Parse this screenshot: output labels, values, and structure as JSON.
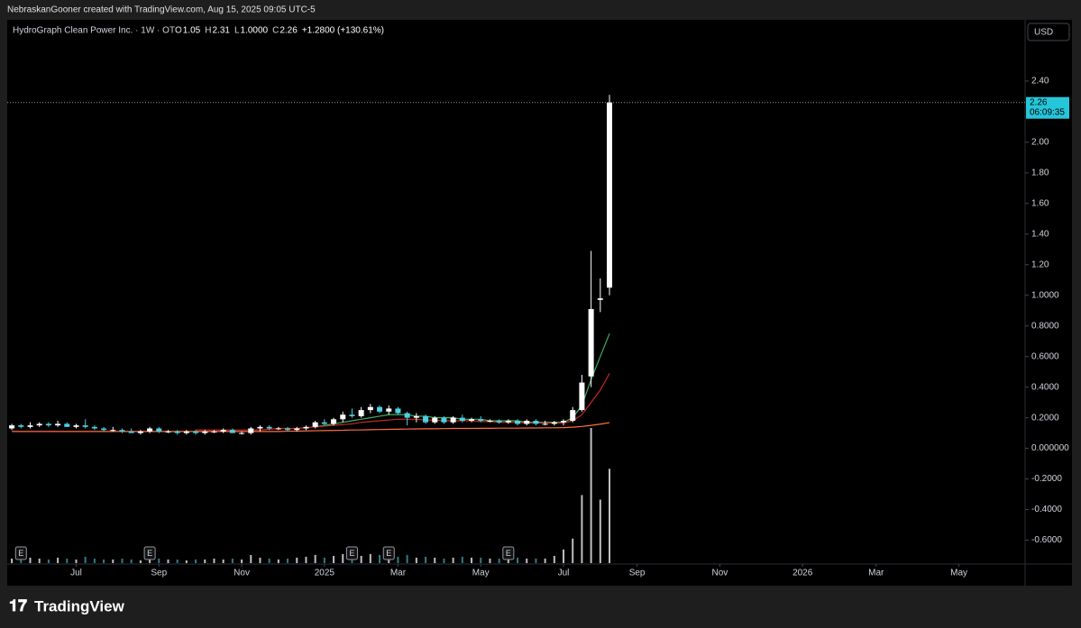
{
  "header": {
    "attribution": "NebraskanGooner created with TradingView.com, Aug 15, 2025 09:05 UTC-5",
    "symbol": "HydroGraph Clean Power Inc. · 1W · OTC",
    "ohlc": [
      {
        "key": "O",
        "value": "1.05"
      },
      {
        "key": "H",
        "value": "2.31"
      },
      {
        "key": "L",
        "value": "1.0000"
      },
      {
        "key": "C",
        "value": "2.26"
      }
    ],
    "change": "+1.2800 (+130.61%)",
    "currency": "USD",
    "countdown": "06:09:35"
  },
  "chart_data": {
    "type": "candlestick",
    "up_color": "#ffffff",
    "down_color": "#4dd0e1",
    "open": [
      0.13,
      0.15,
      0.14,
      0.15,
      0.16,
      0.15,
      0.16,
      0.14,
      0.15,
      0.14,
      0.13,
      0.12,
      0.12,
      0.11,
      0.1,
      0.11,
      0.13,
      0.11,
      0.11,
      0.1,
      0.11,
      0.1,
      0.11,
      0.11,
      0.12,
      0.1,
      0.1,
      0.13,
      0.14,
      0.13,
      0.13,
      0.12,
      0.13,
      0.14,
      0.17,
      0.16,
      0.19,
      0.22,
      0.21,
      0.25,
      0.27,
      0.24,
      0.26,
      0.23,
      0.2,
      0.21,
      0.17,
      0.2,
      0.17,
      0.2,
      0.18,
      0.19,
      0.18,
      0.18,
      0.17,
      0.18,
      0.16,
      0.18,
      0.16,
      0.16,
      0.17,
      0.18,
      0.25,
      0.47,
      0.97,
      1.05
    ],
    "high": [
      0.16,
      0.16,
      0.17,
      0.17,
      0.17,
      0.18,
      0.17,
      0.16,
      0.19,
      0.15,
      0.14,
      0.14,
      0.13,
      0.13,
      0.12,
      0.14,
      0.14,
      0.12,
      0.12,
      0.12,
      0.12,
      0.12,
      0.12,
      0.13,
      0.13,
      0.11,
      0.14,
      0.15,
      0.15,
      0.14,
      0.14,
      0.14,
      0.15,
      0.18,
      0.19,
      0.2,
      0.24,
      0.26,
      0.27,
      0.29,
      0.28,
      0.28,
      0.27,
      0.24,
      0.23,
      0.22,
      0.21,
      0.21,
      0.21,
      0.22,
      0.2,
      0.21,
      0.19,
      0.19,
      0.19,
      0.19,
      0.19,
      0.19,
      0.18,
      0.18,
      0.19,
      0.27,
      0.48,
      1.29,
      1.11,
      2.31
    ],
    "low": [
      0.12,
      0.13,
      0.13,
      0.14,
      0.14,
      0.14,
      0.14,
      0.13,
      0.13,
      0.12,
      0.11,
      0.11,
      0.1,
      0.1,
      0.09,
      0.1,
      0.1,
      0.1,
      0.09,
      0.09,
      0.09,
      0.09,
      0.1,
      0.1,
      0.1,
      0.09,
      0.09,
      0.11,
      0.12,
      0.12,
      0.11,
      0.11,
      0.12,
      0.13,
      0.15,
      0.15,
      0.17,
      0.2,
      0.2,
      0.23,
      0.23,
      0.22,
      0.22,
      0.15,
      0.17,
      0.16,
      0.16,
      0.16,
      0.16,
      0.17,
      0.17,
      0.17,
      0.17,
      0.16,
      0.16,
      0.15,
      0.15,
      0.15,
      0.15,
      0.15,
      0.15,
      0.17,
      0.24,
      0.4,
      0.89,
      1.0
    ],
    "close": [
      0.15,
      0.14,
      0.15,
      0.16,
      0.15,
      0.16,
      0.14,
      0.15,
      0.14,
      0.13,
      0.12,
      0.12,
      0.11,
      0.1,
      0.11,
      0.13,
      0.11,
      0.11,
      0.1,
      0.11,
      0.1,
      0.11,
      0.11,
      0.12,
      0.1,
      0.1,
      0.13,
      0.14,
      0.13,
      0.13,
      0.12,
      0.13,
      0.14,
      0.17,
      0.16,
      0.19,
      0.22,
      0.21,
      0.25,
      0.27,
      0.24,
      0.26,
      0.23,
      0.2,
      0.21,
      0.17,
      0.2,
      0.17,
      0.2,
      0.18,
      0.19,
      0.18,
      0.18,
      0.17,
      0.18,
      0.16,
      0.18,
      0.16,
      0.16,
      0.17,
      0.18,
      0.25,
      0.43,
      0.91,
      0.98,
      2.26
    ],
    "volume": [
      5,
      4,
      6,
      5,
      4,
      6,
      5,
      4,
      7,
      5,
      4,
      4,
      5,
      4,
      3,
      6,
      5,
      4,
      4,
      3,
      4,
      4,
      5,
      4,
      5,
      4,
      9,
      6,
      5,
      4,
      5,
      6,
      7,
      9,
      6,
      8,
      10,
      9,
      8,
      10,
      9,
      8,
      7,
      9,
      6,
      7,
      6,
      5,
      6,
      7,
      6,
      6,
      5,
      5,
      5,
      6,
      5,
      5,
      5,
      8,
      15,
      27,
      75,
      149,
      70,
      104
    ],
    "moving_averages": [
      {
        "color": "#3fae63",
        "values": [
          null,
          null,
          null,
          null,
          null,
          null,
          null,
          null,
          null,
          null,
          null,
          null,
          null,
          null,
          null,
          null,
          null,
          null,
          null,
          null,
          null,
          null,
          null,
          null,
          null,
          null,
          null,
          null,
          null,
          null,
          null,
          null,
          null,
          0.14,
          0.15,
          0.16,
          0.17,
          0.18,
          0.19,
          0.2,
          0.21,
          0.22,
          0.22,
          0.22,
          0.21,
          0.21,
          0.2,
          0.2,
          0.2,
          0.19,
          0.19,
          0.19,
          0.18,
          0.18,
          0.18,
          0.18,
          0.17,
          0.17,
          0.17,
          0.17,
          0.17,
          0.2,
          0.28,
          0.45,
          0.6,
          0.75
        ]
      },
      {
        "color": "#c62828",
        "values": [
          null,
          null,
          null,
          null,
          null,
          null,
          null,
          null,
          null,
          null,
          null,
          null,
          null,
          null,
          null,
          null,
          null,
          null,
          null,
          null,
          0.12,
          0.12,
          0.12,
          0.12,
          0.12,
          0.12,
          0.12,
          0.12,
          0.125,
          0.13,
          0.13,
          0.13,
          0.135,
          0.14,
          0.145,
          0.15,
          0.155,
          0.16,
          0.17,
          0.175,
          0.18,
          0.185,
          0.19,
          0.19,
          0.19,
          0.185,
          0.185,
          0.18,
          0.18,
          0.18,
          0.18,
          0.175,
          0.175,
          0.17,
          0.17,
          0.17,
          0.165,
          0.165,
          0.165,
          0.165,
          0.165,
          0.18,
          0.22,
          0.3,
          0.38,
          0.49
        ]
      },
      {
        "color": "#ff7043",
        "values": [
          0.11,
          0.11,
          0.11,
          0.11,
          0.11,
          0.11,
          0.11,
          0.11,
          0.11,
          0.11,
          0.11,
          0.11,
          0.11,
          0.11,
          0.11,
          0.11,
          0.11,
          0.11,
          0.11,
          0.11,
          0.11,
          0.11,
          0.11,
          0.11,
          0.11,
          0.11,
          0.11,
          0.11,
          0.11,
          0.11,
          0.112,
          0.112,
          0.114,
          0.115,
          0.116,
          0.117,
          0.118,
          0.12,
          0.12,
          0.122,
          0.123,
          0.124,
          0.125,
          0.126,
          0.127,
          0.128,
          0.128,
          0.129,
          0.13,
          0.13,
          0.13,
          0.131,
          0.131,
          0.132,
          0.132,
          0.132,
          0.133,
          0.133,
          0.134,
          0.134,
          0.135,
          0.138,
          0.143,
          0.15,
          0.158,
          0.168
        ]
      }
    ],
    "earnings": {
      "label": "E",
      "weeks": [
        1,
        15,
        37,
        41,
        54
      ]
    },
    "xlim": [
      -0.5,
      110.2
    ],
    "xticks": [
      {
        "value": 7,
        "label": "Jul"
      },
      {
        "value": 16,
        "label": "Sep"
      },
      {
        "value": 25,
        "label": "Nov"
      },
      {
        "value": 34,
        "label": "2025"
      },
      {
        "value": 42,
        "label": "Mar"
      },
      {
        "value": 51,
        "label": "May"
      },
      {
        "value": 60,
        "label": "Jul"
      },
      {
        "value": 68,
        "label": "Sep"
      },
      {
        "value": 77,
        "label": "Nov"
      },
      {
        "value": 86,
        "label": "2026"
      },
      {
        "value": 94,
        "label": "Mar"
      },
      {
        "value": 103,
        "label": "May"
      }
    ],
    "ylim": [
      -0.756,
      2.8
    ],
    "yticks": [
      {
        "value": 2.4,
        "label": "2.40"
      },
      {
        "value": 2.0,
        "label": "2.00"
      },
      {
        "value": 1.8,
        "label": "1.80"
      },
      {
        "value": 1.6,
        "label": "1.60"
      },
      {
        "value": 1.4,
        "label": "1.40"
      },
      {
        "value": 1.2,
        "label": "1.20"
      },
      {
        "value": 1.0,
        "label": "1.0000"
      },
      {
        "value": 0.8,
        "label": "0.8000"
      },
      {
        "value": 0.6,
        "label": "0.6000"
      },
      {
        "value": 0.4,
        "label": "0.4000"
      },
      {
        "value": 0.2,
        "label": "0.2000"
      },
      {
        "value": 0,
        "label": "0.000000"
      },
      {
        "value": -0.2,
        "label": "-0.2000"
      },
      {
        "value": -0.4,
        "label": "-0.4000"
      },
      {
        "value": -0.6,
        "label": "-0.6000"
      }
    ],
    "last_price_color": "#26c6da",
    "footer": "TradingView"
  }
}
